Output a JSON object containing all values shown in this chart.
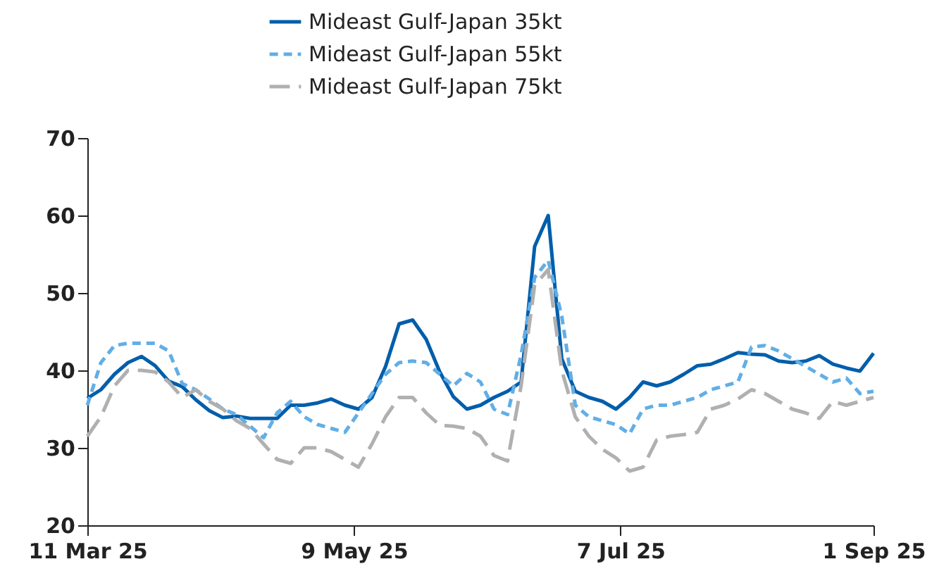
{
  "chart_data": {
    "type": "line",
    "x": [
      "2025-03-11",
      "2025-03-14",
      "2025-03-17",
      "2025-03-20",
      "2025-03-23",
      "2025-03-26",
      "2025-03-29",
      "2025-04-01",
      "2025-04-04",
      "2025-04-07",
      "2025-04-10",
      "2025-04-13",
      "2025-04-16",
      "2025-04-19",
      "2025-04-22",
      "2025-04-25",
      "2025-04-28",
      "2025-05-01",
      "2025-05-04",
      "2025-05-07",
      "2025-05-10",
      "2025-05-13",
      "2025-05-16",
      "2025-05-19",
      "2025-05-22",
      "2025-05-25",
      "2025-05-28",
      "2025-05-31",
      "2025-06-03",
      "2025-06-06",
      "2025-06-09",
      "2025-06-12",
      "2025-06-15",
      "2025-06-18",
      "2025-06-21",
      "2025-06-24",
      "2025-06-27",
      "2025-06-30",
      "2025-07-03",
      "2025-07-06",
      "2025-07-09",
      "2025-07-12",
      "2025-07-15",
      "2025-07-18",
      "2025-07-21",
      "2025-07-24",
      "2025-07-27",
      "2025-07-30",
      "2025-08-02",
      "2025-08-05",
      "2025-08-08",
      "2025-08-11",
      "2025-08-14",
      "2025-08-17",
      "2025-08-20",
      "2025-08-23",
      "2025-08-26",
      "2025-08-29",
      "2025-09-01"
    ],
    "series": [
      {
        "name": "Mideast Gulf-Japan 35kt",
        "color": "#005eab",
        "line_style": "solid",
        "values": [
          36.4,
          37.5,
          39.5,
          41,
          41.8,
          40.6,
          38.6,
          37.9,
          36.2,
          34.8,
          33.9,
          34.1,
          33.8,
          33.8,
          33.8,
          35.5,
          35.5,
          35.8,
          36.3,
          35.5,
          35,
          36.5,
          40.5,
          46,
          46.5,
          44,
          39.8,
          36.6,
          35,
          35.5,
          36.5,
          37.3,
          38.5,
          56,
          60,
          41.5,
          37.3,
          36.5,
          36,
          35,
          36.5,
          38.5,
          38,
          38.5,
          39.5,
          40.6,
          40.8,
          41.5,
          42.3,
          42.1,
          42,
          41.2,
          41,
          41.2,
          41.9,
          40.8,
          40.3,
          39.9,
          42.2
        ]
      },
      {
        "name": "Mideast Gulf-Japan 55kt",
        "color": "#62aee6",
        "line_style": "dashed",
        "values": [
          35.5,
          41,
          43.2,
          43.5,
          43.5,
          43.5,
          42.5,
          38.3,
          37.5,
          36.3,
          35,
          34.3,
          32.8,
          31.3,
          34.5,
          36,
          34,
          33,
          32.5,
          32,
          34.5,
          37,
          39.5,
          41,
          41.2,
          41,
          39.5,
          38,
          39.6,
          38.5,
          35,
          34.3,
          42,
          52,
          54.2,
          47,
          35.5,
          34,
          33.5,
          33,
          31.8,
          35,
          35.5,
          35.5,
          36,
          36.5,
          37.5,
          38,
          38.5,
          43,
          43.2,
          42.5,
          41.5,
          40.5,
          39.5,
          38.5,
          39,
          37,
          37.3
        ]
      },
      {
        "name": "Mideast Gulf-Japan 75kt",
        "color": "#b0b0b0",
        "line_style": "dashed",
        "values": [
          31.5,
          34,
          38,
          40,
          40,
          39.8,
          38.5,
          36.5,
          37.5,
          36,
          35,
          33.5,
          32.5,
          30.5,
          28.5,
          28,
          30,
          30,
          29.5,
          28.5,
          27.5,
          30.5,
          34,
          36.5,
          36.5,
          34.5,
          32.9,
          32.8,
          32.5,
          31.5,
          29,
          28.3,
          38,
          51,
          53,
          40,
          34,
          31.5,
          29.8,
          28.7,
          27,
          27.5,
          31,
          31.5,
          31.7,
          32,
          35,
          35.5,
          36.3,
          37.5,
          37,
          36,
          35,
          34.5,
          33.8,
          36,
          35.5,
          36,
          36.5
        ]
      }
    ],
    "xlim": [
      "2025-03-11",
      "2025-09-01"
    ],
    "xticks": [
      {
        "value": "2025-03-11",
        "label": "11 Mar 25"
      },
      {
        "value": "2025-05-09",
        "label": "9 May 25"
      },
      {
        "value": "2025-07-07",
        "label": "7 Jul 25"
      },
      {
        "value": "2025-09-01",
        "label": "1 Sep 25"
      }
    ],
    "ylim": [
      20,
      70
    ],
    "yticks": [
      20,
      30,
      40,
      50,
      60,
      70
    ],
    "grid": false,
    "legend": "top"
  }
}
